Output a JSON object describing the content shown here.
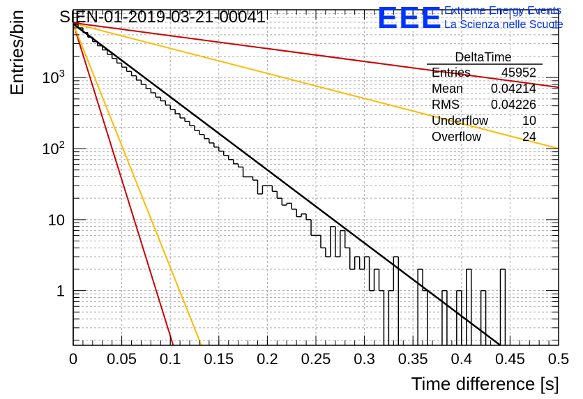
{
  "chart_data": {
    "type": "histogram",
    "title": "SIEN-01-2019-03-21-00041",
    "xlabel": "Time difference [s]",
    "ylabel": "Entries/bin",
    "xlim": [
      0,
      0.5
    ],
    "ylim_log": [
      0.17,
      9000
    ],
    "yscale": "log",
    "grid": true,
    "x_ticks": [
      0,
      0.05,
      0.1,
      0.15,
      0.2,
      0.25,
      0.3,
      0.35,
      0.4,
      0.45,
      0.5
    ],
    "x_tick_labels": [
      "0",
      "0.05",
      "0.1",
      "0.15",
      "0.2",
      "0.25",
      "0.3",
      "0.35",
      "0.4",
      "0.45",
      "0.5"
    ],
    "y_ticks": [
      1,
      10,
      100,
      1000
    ],
    "y_tick_labels": [
      "1",
      "10",
      "10^2",
      "10^3"
    ],
    "bin_width": 0.005,
    "histogram_counts": [
      5600,
      5000,
      4300,
      3700,
      3200,
      2800,
      2450,
      2120,
      1850,
      1600,
      1400,
      1220,
      1060,
      920,
      800,
      700,
      610,
      530,
      470,
      410,
      355,
      310,
      270,
      240,
      210,
      180,
      158,
      138,
      120,
      105,
      92,
      80,
      70,
      61,
      55,
      40,
      40,
      36,
      23,
      30,
      30,
      25,
      20,
      16,
      17,
      14,
      11,
      12,
      10,
      6,
      6,
      4,
      3,
      8,
      3,
      7,
      4,
      2,
      3,
      2,
      3,
      1,
      2,
      1,
      0,
      1,
      3,
      0,
      0,
      0,
      0,
      2,
      1,
      0,
      0,
      0,
      1,
      0,
      0,
      1,
      0,
      2,
      0,
      0,
      1,
      0,
      0,
      0,
      2,
      0
    ],
    "fit_line": {
      "name": "fit",
      "color": "#000000",
      "x": [
        0,
        0.44
      ],
      "y": [
        5700,
        0.17
      ]
    },
    "reference_lines": [
      {
        "name": "red-steep",
        "color": "#cc0000",
        "x": [
          0,
          0.103
        ],
        "y": [
          5800,
          0.17
        ]
      },
      {
        "name": "orange-steep",
        "color": "#ffbb00",
        "x": [
          0,
          0.132
        ],
        "y": [
          5700,
          0.17
        ]
      },
      {
        "name": "orange-shallow",
        "color": "#ffbb00",
        "x": [
          0,
          0.5
        ],
        "y": [
          5800,
          100
        ]
      },
      {
        "name": "red-shallow",
        "color": "#cc0000",
        "x": [
          0,
          0.5
        ],
        "y": [
          5900,
          730
        ]
      }
    ],
    "stats_box": {
      "title": "DeltaTime",
      "rows": [
        {
          "label": "Entries",
          "value": "45952"
        },
        {
          "label": "Mean",
          "value": "0.04214"
        },
        {
          "label": "RMS",
          "value": "0.04226"
        },
        {
          "label": "Underflow",
          "value": "10"
        },
        {
          "label": "Overflow",
          "value": "24"
        }
      ]
    }
  },
  "branding": {
    "logo_text": "EEE",
    "line1": "Extreme Energy Events",
    "line2": "La Scienza nelle Scuole",
    "color": "#0033ff"
  }
}
